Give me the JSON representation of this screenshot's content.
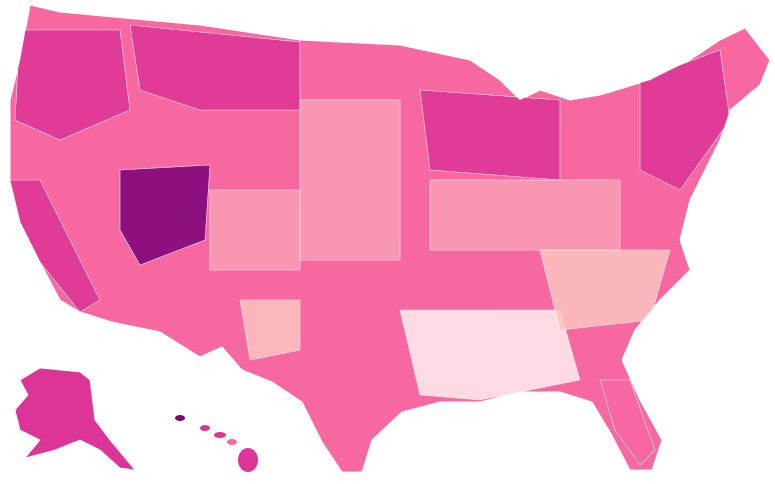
{
  "map": {
    "type": "choropleth",
    "region": "United States",
    "colors": {
      "lightest": "#fff0ee",
      "light": "#fcc5c0",
      "medium_light": "#fa9fb5",
      "medium": "#f768a1",
      "strong": "#dd3497",
      "darkest": "#7a0177",
      "borders": "#ffffff"
    }
  }
}
